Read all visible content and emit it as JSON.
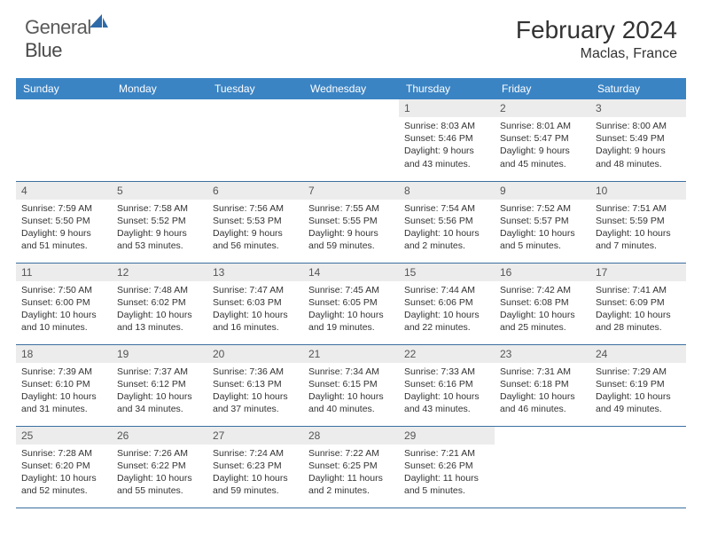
{
  "logo": {
    "brand_left": "General",
    "brand_right": "Blue"
  },
  "header": {
    "title": "February 2024",
    "location": "Maclas, France"
  },
  "colors": {
    "header_bg": "#3b84c4",
    "header_text": "#ffffff",
    "daynum_bg": "#ececec",
    "border": "#3b6fa0",
    "logo_accent": "#2f6aa8"
  },
  "weekdays": [
    "Sunday",
    "Monday",
    "Tuesday",
    "Wednesday",
    "Thursday",
    "Friday",
    "Saturday"
  ],
  "weeks": [
    [
      {
        "n": "",
        "sr": "",
        "ss": "",
        "dl": ""
      },
      {
        "n": "",
        "sr": "",
        "ss": "",
        "dl": ""
      },
      {
        "n": "",
        "sr": "",
        "ss": "",
        "dl": ""
      },
      {
        "n": "",
        "sr": "",
        "ss": "",
        "dl": ""
      },
      {
        "n": "1",
        "sr": "Sunrise: 8:03 AM",
        "ss": "Sunset: 5:46 PM",
        "dl": "Daylight: 9 hours and 43 minutes."
      },
      {
        "n": "2",
        "sr": "Sunrise: 8:01 AM",
        "ss": "Sunset: 5:47 PM",
        "dl": "Daylight: 9 hours and 45 minutes."
      },
      {
        "n": "3",
        "sr": "Sunrise: 8:00 AM",
        "ss": "Sunset: 5:49 PM",
        "dl": "Daylight: 9 hours and 48 minutes."
      }
    ],
    [
      {
        "n": "4",
        "sr": "Sunrise: 7:59 AM",
        "ss": "Sunset: 5:50 PM",
        "dl": "Daylight: 9 hours and 51 minutes."
      },
      {
        "n": "5",
        "sr": "Sunrise: 7:58 AM",
        "ss": "Sunset: 5:52 PM",
        "dl": "Daylight: 9 hours and 53 minutes."
      },
      {
        "n": "6",
        "sr": "Sunrise: 7:56 AM",
        "ss": "Sunset: 5:53 PM",
        "dl": "Daylight: 9 hours and 56 minutes."
      },
      {
        "n": "7",
        "sr": "Sunrise: 7:55 AM",
        "ss": "Sunset: 5:55 PM",
        "dl": "Daylight: 9 hours and 59 minutes."
      },
      {
        "n": "8",
        "sr": "Sunrise: 7:54 AM",
        "ss": "Sunset: 5:56 PM",
        "dl": "Daylight: 10 hours and 2 minutes."
      },
      {
        "n": "9",
        "sr": "Sunrise: 7:52 AM",
        "ss": "Sunset: 5:57 PM",
        "dl": "Daylight: 10 hours and 5 minutes."
      },
      {
        "n": "10",
        "sr": "Sunrise: 7:51 AM",
        "ss": "Sunset: 5:59 PM",
        "dl": "Daylight: 10 hours and 7 minutes."
      }
    ],
    [
      {
        "n": "11",
        "sr": "Sunrise: 7:50 AM",
        "ss": "Sunset: 6:00 PM",
        "dl": "Daylight: 10 hours and 10 minutes."
      },
      {
        "n": "12",
        "sr": "Sunrise: 7:48 AM",
        "ss": "Sunset: 6:02 PM",
        "dl": "Daylight: 10 hours and 13 minutes."
      },
      {
        "n": "13",
        "sr": "Sunrise: 7:47 AM",
        "ss": "Sunset: 6:03 PM",
        "dl": "Daylight: 10 hours and 16 minutes."
      },
      {
        "n": "14",
        "sr": "Sunrise: 7:45 AM",
        "ss": "Sunset: 6:05 PM",
        "dl": "Daylight: 10 hours and 19 minutes."
      },
      {
        "n": "15",
        "sr": "Sunrise: 7:44 AM",
        "ss": "Sunset: 6:06 PM",
        "dl": "Daylight: 10 hours and 22 minutes."
      },
      {
        "n": "16",
        "sr": "Sunrise: 7:42 AM",
        "ss": "Sunset: 6:08 PM",
        "dl": "Daylight: 10 hours and 25 minutes."
      },
      {
        "n": "17",
        "sr": "Sunrise: 7:41 AM",
        "ss": "Sunset: 6:09 PM",
        "dl": "Daylight: 10 hours and 28 minutes."
      }
    ],
    [
      {
        "n": "18",
        "sr": "Sunrise: 7:39 AM",
        "ss": "Sunset: 6:10 PM",
        "dl": "Daylight: 10 hours and 31 minutes."
      },
      {
        "n": "19",
        "sr": "Sunrise: 7:37 AM",
        "ss": "Sunset: 6:12 PM",
        "dl": "Daylight: 10 hours and 34 minutes."
      },
      {
        "n": "20",
        "sr": "Sunrise: 7:36 AM",
        "ss": "Sunset: 6:13 PM",
        "dl": "Daylight: 10 hours and 37 minutes."
      },
      {
        "n": "21",
        "sr": "Sunrise: 7:34 AM",
        "ss": "Sunset: 6:15 PM",
        "dl": "Daylight: 10 hours and 40 minutes."
      },
      {
        "n": "22",
        "sr": "Sunrise: 7:33 AM",
        "ss": "Sunset: 6:16 PM",
        "dl": "Daylight: 10 hours and 43 minutes."
      },
      {
        "n": "23",
        "sr": "Sunrise: 7:31 AM",
        "ss": "Sunset: 6:18 PM",
        "dl": "Daylight: 10 hours and 46 minutes."
      },
      {
        "n": "24",
        "sr": "Sunrise: 7:29 AM",
        "ss": "Sunset: 6:19 PM",
        "dl": "Daylight: 10 hours and 49 minutes."
      }
    ],
    [
      {
        "n": "25",
        "sr": "Sunrise: 7:28 AM",
        "ss": "Sunset: 6:20 PM",
        "dl": "Daylight: 10 hours and 52 minutes."
      },
      {
        "n": "26",
        "sr": "Sunrise: 7:26 AM",
        "ss": "Sunset: 6:22 PM",
        "dl": "Daylight: 10 hours and 55 minutes."
      },
      {
        "n": "27",
        "sr": "Sunrise: 7:24 AM",
        "ss": "Sunset: 6:23 PM",
        "dl": "Daylight: 10 hours and 59 minutes."
      },
      {
        "n": "28",
        "sr": "Sunrise: 7:22 AM",
        "ss": "Sunset: 6:25 PM",
        "dl": "Daylight: 11 hours and 2 minutes."
      },
      {
        "n": "29",
        "sr": "Sunrise: 7:21 AM",
        "ss": "Sunset: 6:26 PM",
        "dl": "Daylight: 11 hours and 5 minutes."
      },
      {
        "n": "",
        "sr": "",
        "ss": "",
        "dl": ""
      },
      {
        "n": "",
        "sr": "",
        "ss": "",
        "dl": ""
      }
    ]
  ]
}
